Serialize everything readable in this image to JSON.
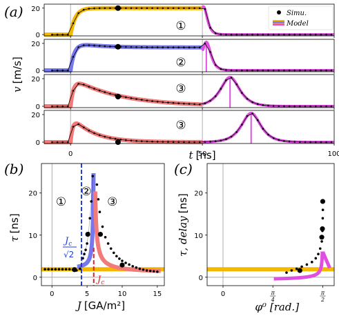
{
  "chart_data": [
    {
      "panel_label": "(a)",
      "type": "line",
      "xlabel_var": "t",
      "xlabel_unit": "[ns]",
      "ylabel_var": "v",
      "ylabel_unit": "[m/s]",
      "xlim": [
        -10,
        100
      ],
      "ylim": [
        -1,
        23
      ],
      "xticks": [
        0,
        50,
        100
      ],
      "yticks": [
        0,
        20
      ],
      "legend": {
        "simu": "Simu.",
        "model": "Model",
        "placement": "top-right"
      },
      "colors": {
        "model_fill_1": "#f5b800",
        "model_fill_2": "#7777ee",
        "model_fill_3": "#f27a78",
        "relax": "#e050e0",
        "dots": "#000000"
      },
      "subplots": [
        {
          "regime": "①",
          "switch_t": 50,
          "rise_tau": 1.8,
          "decay_tau": 0,
          "plateau": 20,
          "peak": 20,
          "relax_peak_t": 50.5,
          "relax_width": 1.2,
          "relax_marker_t": null
        },
        {
          "regime": "②",
          "switch_t": 50,
          "rise_tau": 1.5,
          "decay_tau": 9,
          "plateau": 17,
          "peak": 21,
          "relax_peak_t": 51.5,
          "relax_width": 1.5,
          "relax_marker_t": 51.5
        },
        {
          "regime": "③",
          "switch_t": 50,
          "rise_tau": 1.2,
          "decay_tau": 18,
          "plateau": 0,
          "peak": 21,
          "relax_peak_t": 60.5,
          "relax_width": 3.2,
          "relax_marker_t": 60.5
        },
        {
          "regime": "③",
          "switch_t": 50,
          "rise_tau": 1.0,
          "decay_tau": 8,
          "plateau": 0,
          "peak": 20,
          "relax_peak_t": 68.5,
          "relax_width": 3.2,
          "relax_marker_t": 68.5
        }
      ],
      "big_dots": [
        {
          "t": 18,
          "v": 20
        },
        {
          "t": 18,
          "v": 17.5
        },
        {
          "t": 18,
          "v": 7
        },
        {
          "t": 18,
          "v": 0
        }
      ],
      "vlines_t": [
        0,
        50
      ]
    },
    {
      "panel_label": "(b)",
      "type": "line",
      "xlabel_var": "J",
      "xlabel_unit": "[GA/m²]",
      "ylabel_var": "τ",
      "ylabel_unit": "[ns]",
      "xlim": [
        -1.5,
        16
      ],
      "ylim": [
        -2,
        27
      ],
      "xticks": [
        0,
        5,
        10,
        15
      ],
      "yticks": [
        0,
        10,
        20
      ],
      "regime_labels": [
        {
          "text": "①",
          "x": 1.3,
          "y": 17
        },
        {
          "text": "②",
          "x": 4.9,
          "y": 19.5
        },
        {
          "text": "③",
          "x": 8.6,
          "y": 17
        }
      ],
      "jc_over_sqrt2": 4.2,
      "jc": 5.95,
      "annotation_blue": {
        "num": "J",
        "num_sub": "c",
        "den": "√2"
      },
      "annotation_red": {
        "text": "J",
        "sub": "c"
      },
      "plateau_tau": 1.9,
      "colors": {
        "yellow": "#f5b800",
        "blue": "#7777ee",
        "red": "#f27a78",
        "blue_dash": "#1f3de0",
        "red_dash": "#e02020"
      },
      "dots": [
        [
          -1,
          1.9
        ],
        [
          -0.5,
          1.9
        ],
        [
          0,
          1.9
        ],
        [
          0.5,
          1.9
        ],
        [
          1,
          1.9
        ],
        [
          1.5,
          1.9
        ],
        [
          2,
          1.9
        ],
        [
          2.5,
          1.9
        ],
        [
          3,
          1.8
        ],
        [
          3.5,
          1.6
        ],
        [
          4.0,
          2.0
        ],
        [
          4.4,
          4.5
        ],
        [
          4.6,
          5.5
        ],
        [
          4.8,
          6.5
        ],
        [
          5.0,
          8.0
        ],
        [
          5.2,
          10.5
        ],
        [
          5.4,
          14.0
        ],
        [
          5.6,
          18.0
        ],
        [
          5.8,
          24
        ],
        [
          6.4,
          22
        ],
        [
          6.6,
          18.5
        ],
        [
          6.8,
          15.5
        ],
        [
          7.2,
          12
        ],
        [
          7.6,
          9.5
        ],
        [
          8,
          8
        ],
        [
          8.4,
          6.8
        ],
        [
          8.8,
          5.8
        ],
        [
          9.2,
          5
        ],
        [
          9.6,
          4.4
        ],
        [
          10,
          3.9
        ],
        [
          10.5,
          3.4
        ],
        [
          11,
          3.0
        ],
        [
          11.5,
          2.6
        ],
        [
          12,
          2.3
        ],
        [
          12.5,
          2.0
        ],
        [
          13,
          1.8
        ],
        [
          13.5,
          1.6
        ],
        [
          14,
          1.5
        ],
        [
          14.5,
          1.4
        ],
        [
          15,
          1.3
        ]
      ],
      "big_dots": [
        [
          3.2,
          1.8
        ],
        [
          5.1,
          10.2
        ],
        [
          6.9,
          10.2
        ],
        [
          10.0,
          2.9
        ]
      ]
    },
    {
      "panel_label": "(c)",
      "type": "line",
      "xlabel_var": "φ⁰",
      "xlabel_unit": "[rad.]",
      "ylabel_var": "τ, delay",
      "ylabel_unit": "[ns]",
      "xlim": [
        -0.25,
        1.75
      ],
      "ylim": [
        -2,
        27
      ],
      "xticks": [
        0,
        0.7854,
        1.5708
      ],
      "xticklabels": [
        "0",
        "π/4",
        "π/2"
      ],
      "yticks": [
        0,
        10,
        20
      ],
      "plateau_tau": 1.9,
      "colors": {
        "yellow": "#f5b800",
        "magenta": "#e050e0"
      },
      "dots": [
        [
          1.0,
          1.1
        ],
        [
          1.08,
          1.6
        ],
        [
          1.16,
          2.0
        ],
        [
          1.24,
          2.5
        ],
        [
          1.32,
          3.0
        ],
        [
          1.4,
          3.6
        ],
        [
          1.46,
          4.5
        ],
        [
          1.5,
          5.5
        ],
        [
          1.53,
          6.8
        ],
        [
          1.555,
          8.5
        ],
        [
          1.565,
          11
        ],
        [
          1.57,
          14
        ],
        [
          1.572,
          16
        ]
      ],
      "big_dots": [
        [
          1.21,
          1.6
        ],
        [
          1.555,
          9.5
        ],
        [
          1.565,
          11.5
        ],
        [
          1.57,
          18.0
        ]
      ]
    }
  ]
}
